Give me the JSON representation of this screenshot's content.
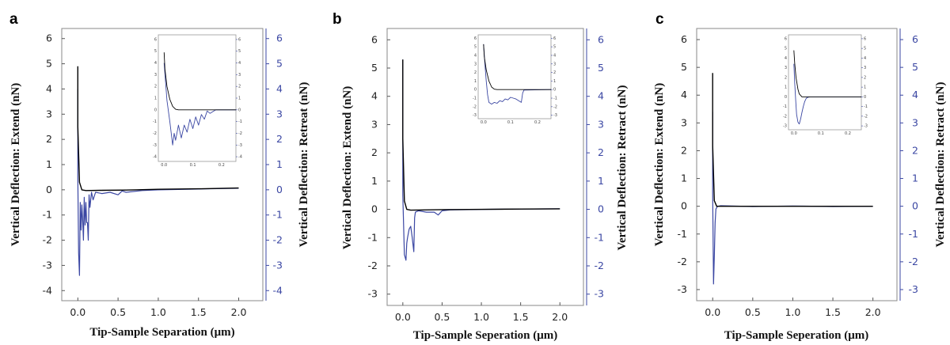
{
  "colors": {
    "extend": "#000000",
    "retract": "#3b47a3",
    "axis_left": "#222222",
    "axis_right": "#3b47a3"
  },
  "chart_data": [
    {
      "type": "line",
      "panel": "a",
      "xlabel": "Tip-Sample Separation (μm)",
      "ylabel_left": "Vertical Deflection: Extend (nN)",
      "ylabel_right": "Vertical Deflection: Retreat (nN)",
      "xlim": [
        -0.2,
        2.3
      ],
      "ylim": [
        -4.4,
        6.4
      ],
      "xticks": [
        "0.0",
        "0.5",
        "1.0",
        "1.5",
        "2.0"
      ],
      "yticks": [
        "-4",
        "-3",
        "-2",
        "-1",
        "0",
        "1",
        "2",
        "3",
        "4",
        "5",
        "6"
      ],
      "series": [
        {
          "x": [
            0.0,
            0.0,
            0.02,
            0.05,
            0.1,
            0.3,
            0.6,
            1.0,
            1.5,
            2.0
          ],
          "values": [
            4.9,
            2.5,
            0.3,
            0.0,
            -0.03,
            -0.02,
            -0.01,
            0.02,
            0.04,
            0.07
          ]
        },
        {
          "x": [
            0.0,
            0.0,
            0.01,
            0.02,
            0.03,
            0.04,
            0.05,
            0.06,
            0.07,
            0.08,
            0.09,
            0.1,
            0.11,
            0.12,
            0.13,
            0.14,
            0.15,
            0.17,
            0.19,
            0.22,
            0.3,
            0.4,
            0.5,
            0.55,
            0.6,
            0.8,
            1.0,
            1.5,
            2.0
          ],
          "values": [
            4.0,
            0.5,
            -2.5,
            -3.4,
            -0.5,
            -1.6,
            -0.6,
            -1.2,
            -2.0,
            -0.3,
            -1.4,
            -0.5,
            -1.3,
            -1.3,
            -2.0,
            -0.2,
            -0.7,
            -0.1,
            -0.4,
            -0.1,
            -0.15,
            -0.1,
            -0.2,
            -0.05,
            -0.1,
            -0.03,
            0.0,
            0.03,
            0.06
          ]
        }
      ],
      "inset": {
        "xticks": [
          "0.0",
          "0.1",
          "0.2"
        ],
        "yticks": [
          "-4",
          "-3",
          "-2",
          "-1",
          "0",
          "1",
          "2",
          "3",
          "4",
          "5",
          "6"
        ],
        "xlim": [
          -0.02,
          0.25
        ],
        "ylim": [
          -4.4,
          6.4
        ],
        "series": [
          {
            "x": [
              0.0,
              0.003,
              0.01,
              0.02,
              0.03,
              0.04,
              0.05,
              0.25
            ],
            "values": [
              4.9,
              3.5,
              2.0,
              0.9,
              0.3,
              0.05,
              0.0,
              0.0
            ]
          },
          {
            "x": [
              0.0,
              0.01,
              0.02,
              0.03,
              0.035,
              0.04,
              0.05,
              0.06,
              0.07,
              0.08,
              0.09,
              0.1,
              0.11,
              0.12,
              0.13,
              0.14,
              0.15,
              0.16,
              0.18,
              0.25
            ],
            "values": [
              4.0,
              0.8,
              -1.0,
              -3.0,
              -2.0,
              -2.6,
              -1.3,
              -2.4,
              -1.3,
              -1.9,
              -0.8,
              -1.6,
              -0.6,
              -1.3,
              -0.4,
              -0.8,
              -0.1,
              -0.3,
              0.0,
              0.0
            ]
          }
        ]
      }
    },
    {
      "type": "line",
      "panel": "b",
      "xlabel": "Tip-Sample Seperation (μm)",
      "ylabel_left": "Vertical Deflection: Extend (nN)",
      "ylabel_right": "Vertical Deflection: Retract (nN)",
      "xlim": [
        -0.2,
        2.3
      ],
      "ylim": [
        -3.4,
        6.4
      ],
      "xticks": [
        "0.0",
        "0.5",
        "1.0",
        "1.5",
        "2.0"
      ],
      "yticks": [
        "-3",
        "-2",
        "-1",
        "0",
        "1",
        "2",
        "3",
        "4",
        "5",
        "6"
      ],
      "series": [
        {
          "x": [
            0.0,
            0.0,
            0.02,
            0.05,
            0.1,
            0.5,
            1.0,
            1.5,
            2.0
          ],
          "values": [
            5.3,
            2.5,
            0.3,
            0.0,
            -0.03,
            -0.01,
            0.0,
            0.01,
            0.02
          ]
        },
        {
          "x": [
            0.0,
            0.0,
            0.02,
            0.04,
            0.05,
            0.06,
            0.08,
            0.1,
            0.12,
            0.14,
            0.15,
            0.16,
            0.2,
            0.3,
            0.4,
            0.45,
            0.5,
            0.6,
            1.0,
            1.5,
            2.0
          ],
          "values": [
            5.3,
            0.5,
            -1.6,
            -1.8,
            -1.2,
            -1.0,
            -0.7,
            -0.6,
            -1.0,
            -1.5,
            -0.3,
            -0.1,
            -0.05,
            -0.1,
            -0.1,
            -0.2,
            -0.05,
            -0.02,
            0.0,
            0.01,
            0.02
          ]
        }
      ],
      "inset": {
        "xticks": [
          "0.0",
          "0.1",
          "0.2"
        ],
        "yticks": [
          "-3",
          "-2",
          "-1",
          "0",
          "1",
          "2",
          "3",
          "4",
          "5",
          "6"
        ],
        "xlim": [
          -0.02,
          0.25
        ],
        "ylim": [
          -3.4,
          6.4
        ],
        "series": [
          {
            "x": [
              0.0,
              0.003,
              0.01,
              0.02,
              0.03,
              0.04,
              0.05,
              0.25
            ],
            "values": [
              5.3,
              3.8,
              2.3,
              1.0,
              0.3,
              0.05,
              0.0,
              0.0
            ]
          },
          {
            "x": [
              0.0,
              0.005,
              0.01,
              0.015,
              0.02,
              0.03,
              0.04,
              0.05,
              0.06,
              0.07,
              0.08,
              0.09,
              0.1,
              0.11,
              0.12,
              0.13,
              0.14,
              0.145,
              0.15,
              0.25
            ],
            "values": [
              5.3,
              3.0,
              1.0,
              -0.6,
              -1.5,
              -1.7,
              -1.5,
              -1.6,
              -1.3,
              -1.4,
              -1.1,
              -1.2,
              -0.9,
              -1.0,
              -1.1,
              -1.3,
              -1.5,
              -0.4,
              -0.05,
              0.0
            ]
          }
        ]
      }
    },
    {
      "type": "line",
      "panel": "c",
      "xlabel": "Tip-Sample Seperation (μm)",
      "ylabel_left": "Vertical Deflection: Extend (nN)",
      "ylabel_right": "Vertical Deflection: Retract (nN)",
      "xlim": [
        -0.2,
        2.3
      ],
      "ylim": [
        -3.4,
        6.4
      ],
      "xticks": [
        "0.0",
        "0.5",
        "1.0",
        "1.5",
        "2.0"
      ],
      "yticks": [
        "-3",
        "-2",
        "-1",
        "0",
        "1",
        "2",
        "3",
        "4",
        "5",
        "6"
      ],
      "series": [
        {
          "x": [
            0.0,
            0.0,
            0.02,
            0.05,
            0.1,
            0.5,
            1.0,
            1.5,
            2.0
          ],
          "values": [
            4.8,
            2.2,
            0.2,
            0.0,
            0.0,
            0.0,
            0.0,
            0.0,
            0.0
          ]
        },
        {
          "x": [
            0.0,
            0.0,
            0.01,
            0.02,
            0.03,
            0.04,
            0.06,
            0.1,
            0.5,
            1.0,
            1.5,
            2.0
          ],
          "values": [
            3.4,
            0.5,
            -2.8,
            -1.8,
            -0.6,
            -0.1,
            0.0,
            0.02,
            -0.01,
            0.01,
            -0.01,
            0.0
          ]
        }
      ],
      "inset": {
        "xticks": [
          "0.0",
          "0.1",
          "0.2"
        ],
        "yticks": [
          "-3",
          "-2",
          "-1",
          "0",
          "1",
          "2",
          "3",
          "4",
          "5",
          "6"
        ],
        "xlim": [
          -0.02,
          0.25
        ],
        "ylim": [
          -3.4,
          6.4
        ],
        "series": [
          {
            "x": [
              0.0,
              0.003,
              0.008,
              0.015,
              0.02,
              0.03,
              0.25
            ],
            "values": [
              4.8,
              3.5,
              2.0,
              0.8,
              0.3,
              0.0,
              0.0
            ]
          },
          {
            "x": [
              0.0,
              0.003,
              0.007,
              0.01,
              0.015,
              0.02,
              0.025,
              0.03,
              0.035,
              0.04,
              0.045,
              0.05,
              0.06,
              0.25
            ],
            "values": [
              3.4,
              1.5,
              -0.5,
              -1.8,
              -2.6,
              -2.8,
              -2.3,
              -1.6,
              -1.0,
              -0.5,
              -0.2,
              -0.05,
              0.0,
              0.0
            ]
          }
        ]
      }
    }
  ]
}
